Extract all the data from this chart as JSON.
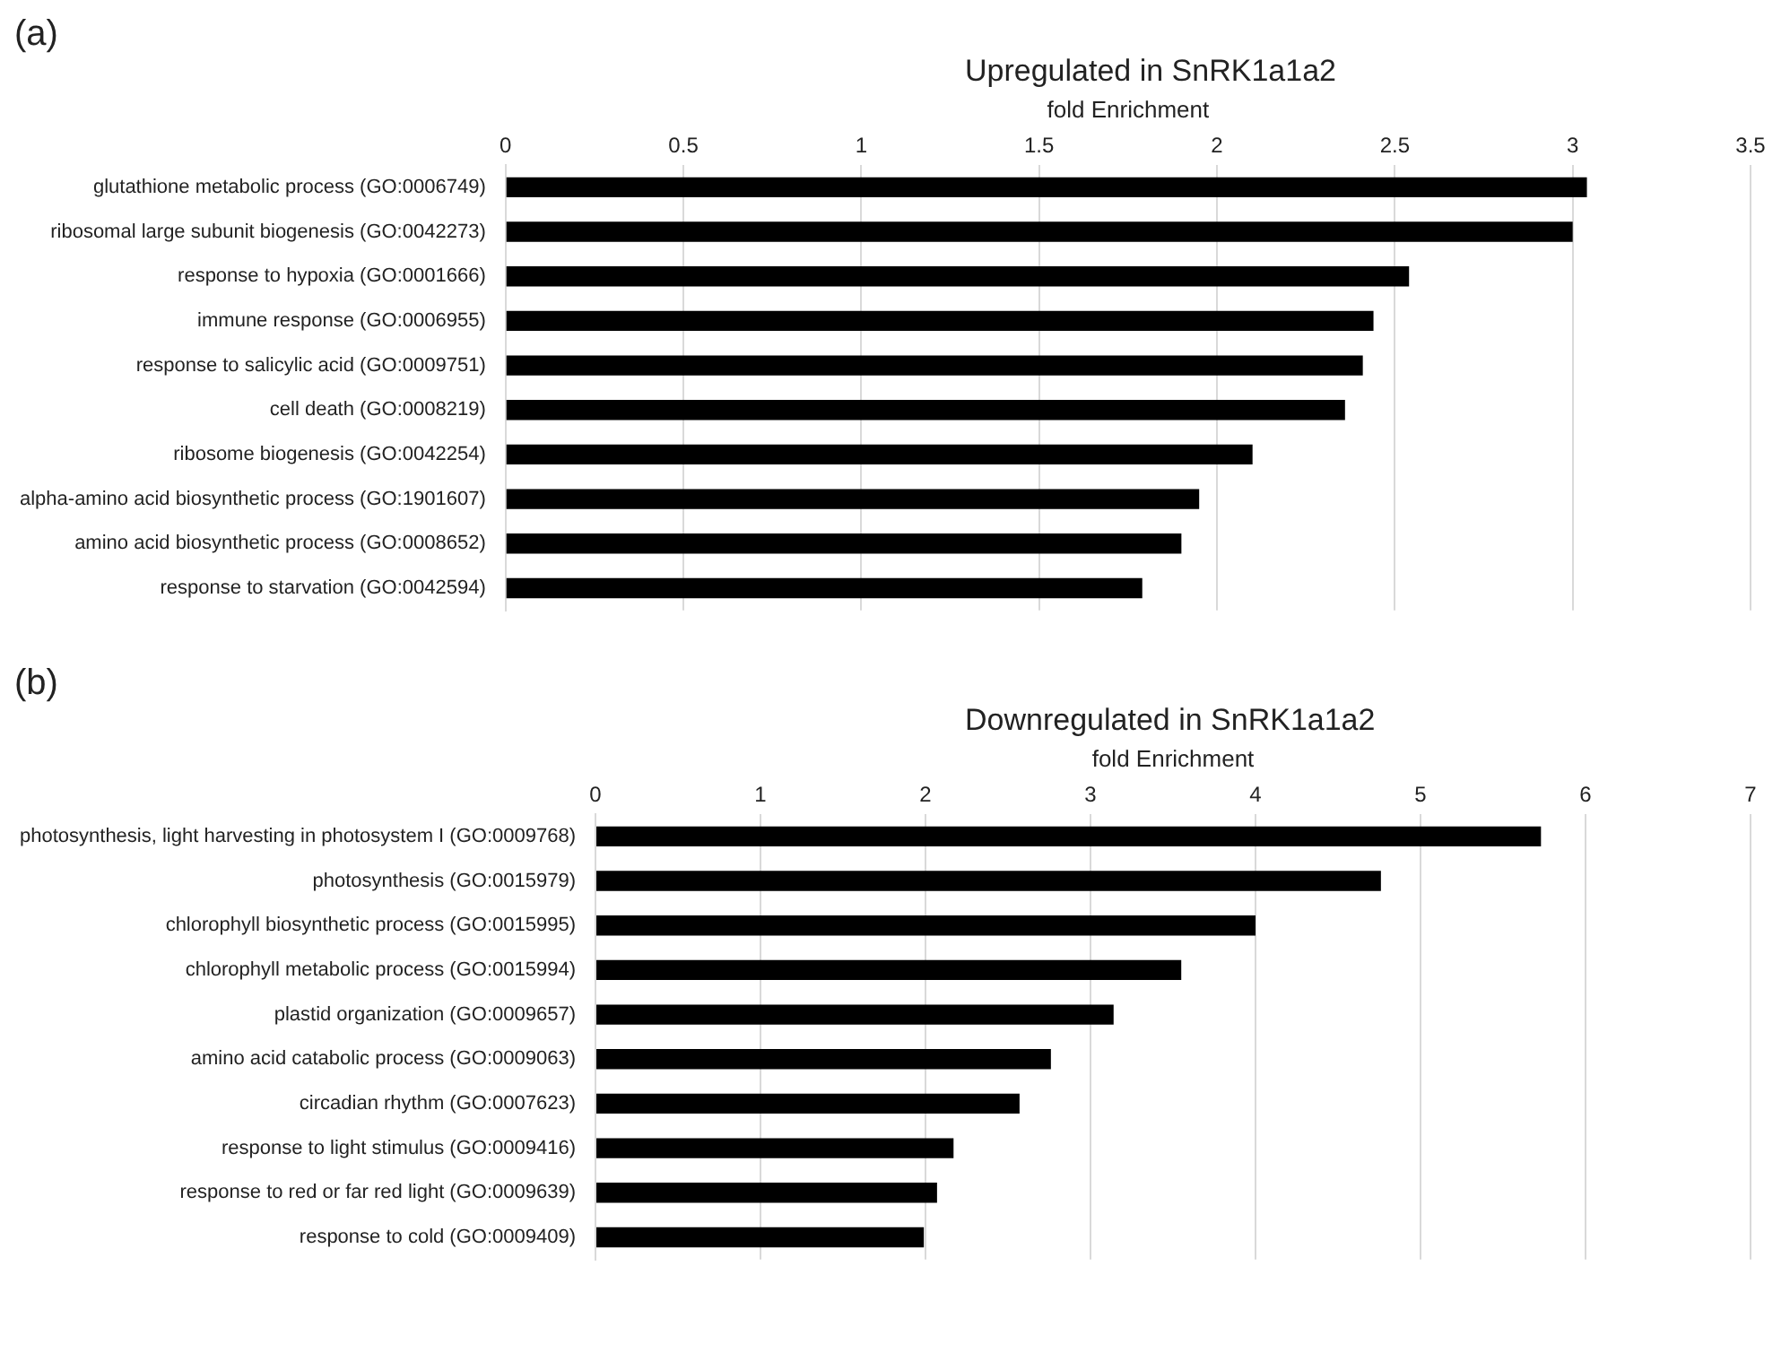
{
  "chart_data": [
    {
      "type": "bar",
      "orientation": "horizontal",
      "title": "Upregulated in SnRK1a1a2",
      "annotations": [
        "(a)"
      ],
      "xlabel": "fold Enrichment",
      "categories": [
        "glutathione metabolic process (GO:0006749)",
        "ribosomal large subunit biogenesis (GO:0042273)",
        "response to hypoxia (GO:0001666)",
        "immune response (GO:0006955)",
        "response to salicylic acid (GO:0009751)",
        "cell death (GO:0008219)",
        "ribosome biogenesis (GO:0042254)",
        "alpha-amino acid biosynthetic process (GO:1901607)",
        "amino acid biosynthetic process (GO:0008652)",
        "response to starvation (GO:0042594)"
      ],
      "values": [
        3.04,
        3.0,
        2.54,
        2.44,
        2.41,
        2.36,
        2.1,
        1.95,
        1.9,
        1.79
      ],
      "color": "#000000",
      "xlim": [
        0,
        3.5
      ],
      "xticks": [
        0,
        0.5,
        1,
        1.5,
        2,
        2.5,
        3,
        3.5
      ],
      "grid": "x"
    },
    {
      "type": "bar",
      "orientation": "horizontal",
      "title": "Downregulated in SnRK1a1a2",
      "annotations": [
        "(b)"
      ],
      "xlabel": "fold Enrichment",
      "categories": [
        "photosynthesis, light harvesting in photosystem I (GO:0009768)",
        "photosynthesis (GO:0015979)",
        "chlorophyll biosynthetic process (GO:0015995)",
        "chlorophyll metabolic process (GO:0015994)",
        "plastid organization (GO:0009657)",
        "amino acid catabolic process (GO:0009063)",
        "circadian rhythm (GO:0007623)",
        "response to light stimulus (GO:0009416)",
        "response to red or far red light (GO:0009639)",
        "response to cold (GO:0009409)"
      ],
      "values": [
        5.73,
        4.76,
        4.0,
        3.55,
        3.14,
        2.76,
        2.57,
        2.17,
        2.07,
        1.99
      ],
      "color": "#000000",
      "xlim": [
        0,
        7
      ],
      "xticks": [
        0,
        1,
        2,
        3,
        4,
        5,
        6,
        7
      ],
      "grid": "x"
    }
  ]
}
